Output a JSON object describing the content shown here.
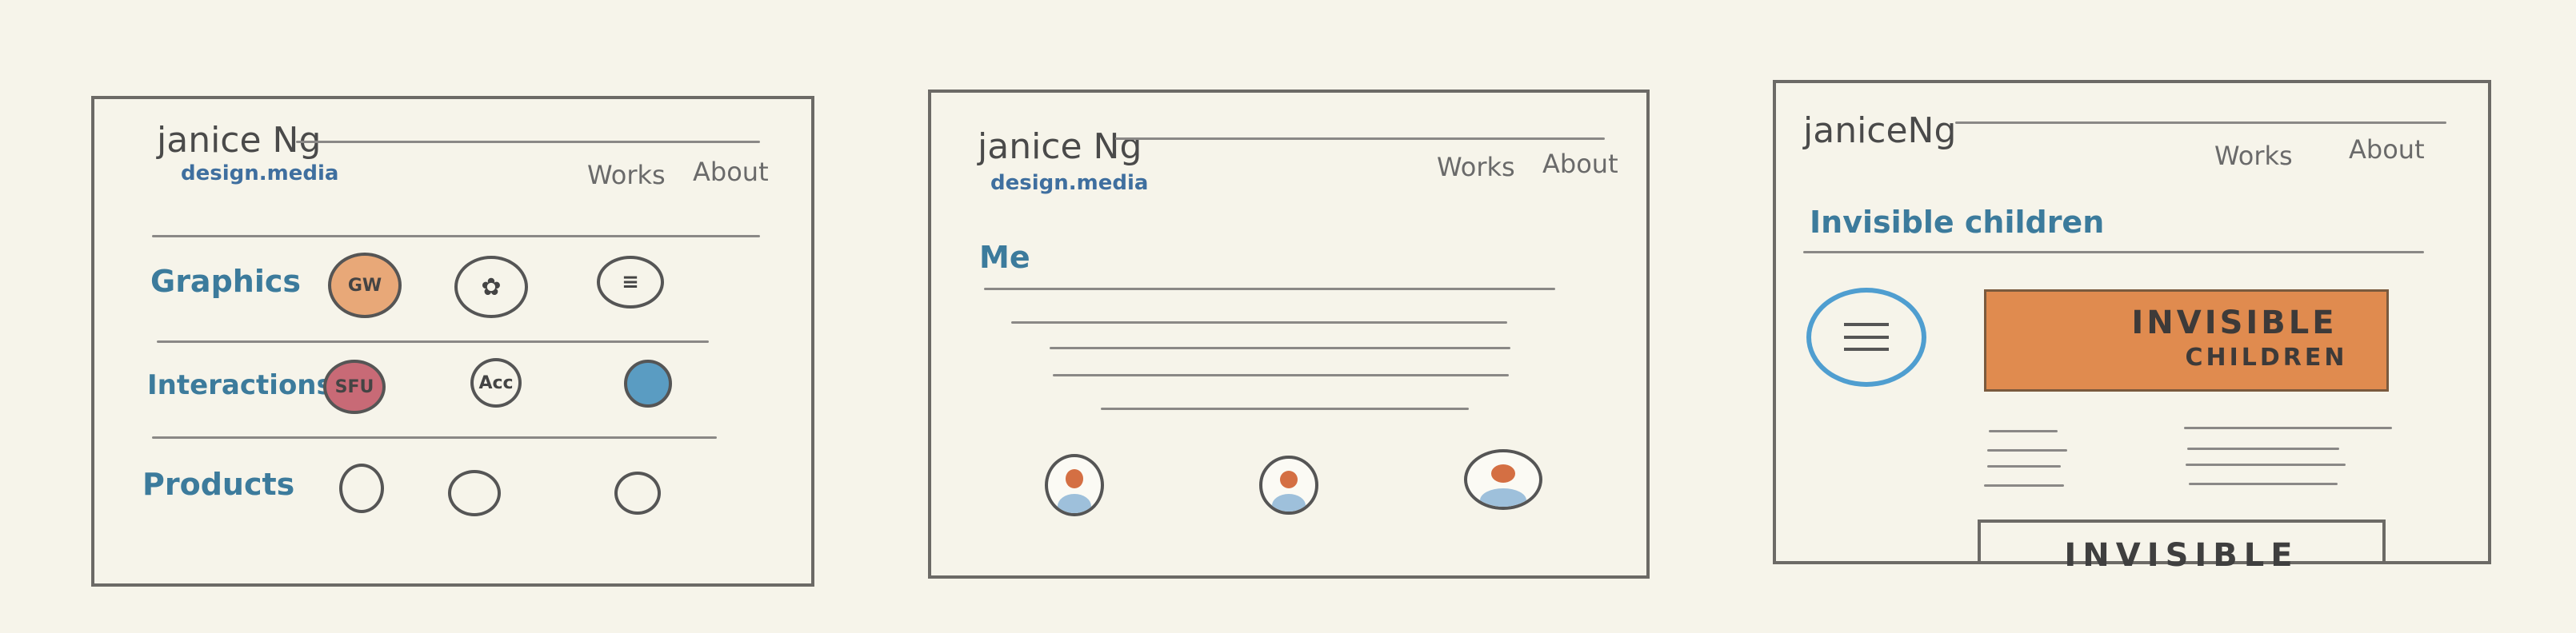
{
  "sketch1": {
    "logo": "janice Ng",
    "subtitle": "design.media",
    "nav": [
      "Works",
      "About"
    ],
    "categories": [
      {
        "label": "Graphics",
        "items": [
          "GW",
          "",
          ""
        ]
      },
      {
        "label": "Interactions",
        "items": [
          "SFU",
          "Acc",
          ""
        ]
      },
      {
        "label": "Products",
        "items": [
          "",
          "",
          ""
        ]
      }
    ]
  },
  "sketch2": {
    "logo": "janice Ng",
    "subtitle": "design.media",
    "nav": [
      "Works",
      "About"
    ],
    "heading": "Me"
  },
  "sketch3": {
    "logo": "janiceNg",
    "nav": [
      "Works",
      "About"
    ],
    "heading": "Invisible children",
    "banner_line1": "INVISIBLE",
    "banner_line2": "CHILDREN",
    "bottom_box": "INVISIBLE"
  },
  "colors": {
    "paper": "#f6f4ea",
    "pencil": "#6c6a66",
    "blue": "#3c7b9c",
    "orange": "#e08b4f"
  }
}
